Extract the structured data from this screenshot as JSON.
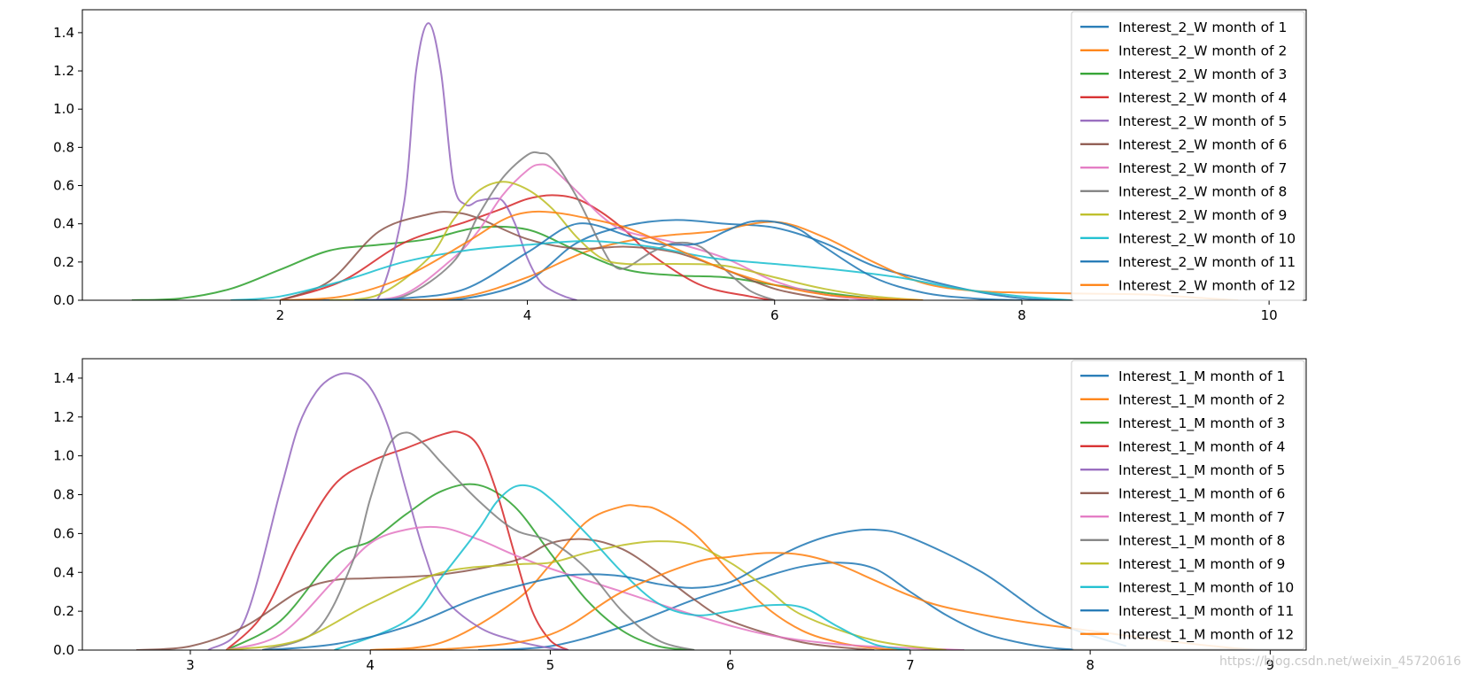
{
  "watermark": "https://blog.csdn.net/weixin_45720616",
  "palette": [
    "#1f77b4",
    "#ff7f0e",
    "#2ca02c",
    "#d62728",
    "#9467bd",
    "#8c564b",
    "#e377c2",
    "#7f7f7f",
    "#bcbd22",
    "#17becf",
    "#1f77b4",
    "#ff7f0e"
  ],
  "chart_data": [
    {
      "type": "line",
      "title": "",
      "xlabel": "",
      "ylabel": "",
      "xlim": [
        0.4,
        10.3
      ],
      "ylim": [
        0,
        1.52
      ],
      "xticks": [
        2,
        4,
        6,
        8,
        10
      ],
      "yticks": [
        0.0,
        0.2,
        0.4,
        0.6,
        0.8,
        1.0,
        1.2,
        1.4
      ],
      "grid": false,
      "legend": "top-right",
      "series": [
        {
          "name": "Interest_2_W month of 1",
          "x": [
            2.0,
            2.5,
            3.0,
            3.5,
            4.0,
            4.4,
            4.8,
            5.2,
            5.6,
            6.0,
            6.4,
            6.8,
            7.2,
            7.6,
            8.0,
            8.4
          ],
          "y": [
            0.0,
            0.0,
            0.0,
            0.01,
            0.1,
            0.3,
            0.39,
            0.42,
            0.4,
            0.38,
            0.3,
            0.18,
            0.11,
            0.05,
            0.01,
            0.0
          ]
        },
        {
          "name": "Interest_2_W month of 2",
          "x": [
            2.5,
            3.0,
            3.5,
            4.0,
            4.5,
            5.0,
            5.5,
            6.0,
            6.4,
            6.8,
            7.2,
            7.6,
            8.0,
            8.5,
            9.0,
            9.5,
            9.75
          ],
          "y": [
            0.0,
            0.0,
            0.02,
            0.12,
            0.26,
            0.33,
            0.36,
            0.41,
            0.33,
            0.2,
            0.09,
            0.05,
            0.04,
            0.035,
            0.03,
            0.01,
            0.0
          ]
        },
        {
          "name": "Interest_2_W month of 3",
          "x": [
            0.8,
            1.2,
            1.6,
            2.0,
            2.4,
            2.8,
            3.2,
            3.6,
            4.0,
            4.4,
            4.8,
            5.2,
            5.6,
            6.0,
            6.4,
            6.8,
            7.0
          ],
          "y": [
            0.0,
            0.01,
            0.06,
            0.16,
            0.26,
            0.29,
            0.32,
            0.38,
            0.37,
            0.26,
            0.16,
            0.13,
            0.12,
            0.08,
            0.04,
            0.01,
            0.0
          ]
        },
        {
          "name": "Interest_2_W month of 4",
          "x": [
            2.0,
            2.5,
            3.0,
            3.5,
            3.8,
            4.0,
            4.2,
            4.4,
            4.6,
            4.8,
            5.0,
            5.4,
            5.8,
            6.0
          ],
          "y": [
            0.0,
            0.1,
            0.3,
            0.41,
            0.48,
            0.53,
            0.55,
            0.53,
            0.46,
            0.36,
            0.24,
            0.08,
            0.02,
            0.0
          ]
        },
        {
          "name": "Interest_2_W month of 5",
          "x": [
            2.6,
            2.8,
            3.0,
            3.1,
            3.2,
            3.3,
            3.4,
            3.5,
            3.6,
            3.7,
            3.8,
            3.9,
            4.0,
            4.1,
            4.2,
            4.3,
            4.4
          ],
          "y": [
            0.0,
            0.02,
            0.5,
            1.2,
            1.45,
            1.2,
            0.62,
            0.5,
            0.52,
            0.53,
            0.52,
            0.4,
            0.22,
            0.1,
            0.05,
            0.02,
            0.0
          ]
        },
        {
          "name": "Interest_2_W month of 6",
          "x": [
            2.0,
            2.4,
            2.8,
            3.2,
            3.4,
            3.6,
            4.0,
            4.4,
            4.8,
            5.2,
            5.6,
            6.0,
            6.4,
            6.6
          ],
          "y": [
            0.0,
            0.1,
            0.36,
            0.45,
            0.46,
            0.43,
            0.32,
            0.27,
            0.28,
            0.25,
            0.16,
            0.06,
            0.01,
            0.0
          ]
        },
        {
          "name": "Interest_2_W month of 7",
          "x": [
            2.6,
            3.0,
            3.4,
            3.6,
            3.8,
            4.0,
            4.1,
            4.2,
            4.4,
            4.6,
            4.8,
            5.2,
            5.6,
            6.0,
            6.4,
            6.8
          ],
          "y": [
            0.0,
            0.03,
            0.22,
            0.36,
            0.55,
            0.68,
            0.71,
            0.69,
            0.57,
            0.44,
            0.36,
            0.3,
            0.22,
            0.1,
            0.03,
            0.0
          ]
        },
        {
          "name": "Interest_2_W month of 8",
          "x": [
            2.6,
            3.0,
            3.4,
            3.6,
            3.8,
            4.0,
            4.1,
            4.2,
            4.4,
            4.6,
            4.7,
            4.8,
            5.0,
            5.2,
            5.4,
            5.6,
            5.8,
            6.0
          ],
          "y": [
            0.0,
            0.02,
            0.2,
            0.44,
            0.64,
            0.76,
            0.77,
            0.74,
            0.54,
            0.28,
            0.18,
            0.17,
            0.25,
            0.3,
            0.28,
            0.16,
            0.05,
            0.0
          ]
        },
        {
          "name": "Interest_2_W month of 9",
          "x": [
            2.4,
            2.8,
            3.2,
            3.4,
            3.6,
            3.8,
            4.0,
            4.2,
            4.4,
            4.6,
            4.8,
            5.2,
            5.6,
            6.0,
            6.4,
            6.8,
            7.2
          ],
          "y": [
            0.0,
            0.03,
            0.22,
            0.42,
            0.57,
            0.62,
            0.58,
            0.48,
            0.33,
            0.22,
            0.19,
            0.19,
            0.18,
            0.12,
            0.06,
            0.02,
            0.0
          ]
        },
        {
          "name": "Interest_2_W month of 10",
          "x": [
            1.6,
            2.0,
            2.5,
            3.0,
            3.5,
            4.0,
            4.5,
            5.0,
            5.5,
            6.0,
            6.5,
            7.0,
            7.5,
            8.0,
            8.4
          ],
          "y": [
            0.0,
            0.02,
            0.1,
            0.2,
            0.26,
            0.29,
            0.31,
            0.28,
            0.22,
            0.19,
            0.16,
            0.12,
            0.06,
            0.02,
            0.0
          ]
        },
        {
          "name": "Interest_2_W month of 11",
          "x": [
            2.6,
            3.0,
            3.5,
            4.0,
            4.4,
            4.8,
            5.0,
            5.2,
            5.4,
            5.6,
            5.8,
            6.0,
            6.2,
            6.4,
            6.8,
            7.2,
            7.6,
            8.0
          ],
          "y": [
            0.0,
            0.01,
            0.06,
            0.25,
            0.4,
            0.34,
            0.3,
            0.29,
            0.3,
            0.36,
            0.41,
            0.41,
            0.37,
            0.28,
            0.12,
            0.04,
            0.01,
            0.0
          ]
        },
        {
          "name": "Interest_2_W month of 12",
          "x": [
            2.0,
            2.5,
            3.0,
            3.5,
            3.8,
            4.0,
            4.2,
            4.4,
            4.8,
            5.2,
            5.6,
            6.0,
            6.4,
            6.8,
            7.2
          ],
          "y": [
            0.0,
            0.02,
            0.12,
            0.3,
            0.42,
            0.46,
            0.46,
            0.44,
            0.38,
            0.27,
            0.16,
            0.08,
            0.03,
            0.01,
            0.0
          ]
        }
      ]
    },
    {
      "type": "line",
      "title": "",
      "xlabel": "",
      "ylabel": "",
      "xlim": [
        2.4,
        9.2
      ],
      "ylim": [
        0,
        1.5
      ],
      "xticks": [
        3,
        4,
        5,
        6,
        7,
        8,
        9
      ],
      "yticks": [
        0.0,
        0.2,
        0.4,
        0.6,
        0.8,
        1.0,
        1.2,
        1.4
      ],
      "grid": false,
      "legend": "top-right",
      "series": [
        {
          "name": "Interest_1_M month of 1",
          "x": [
            4.6,
            5.0,
            5.4,
            5.8,
            6.0,
            6.2,
            6.4,
            6.6,
            6.8,
            7.0,
            7.2,
            7.4,
            7.6,
            7.8,
            8.0
          ],
          "y": [
            0.0,
            0.02,
            0.12,
            0.26,
            0.32,
            0.38,
            0.43,
            0.45,
            0.42,
            0.3,
            0.18,
            0.09,
            0.04,
            0.01,
            0.0
          ]
        },
        {
          "name": "Interest_1_M month of 2",
          "x": [
            4.0,
            4.4,
            4.8,
            5.0,
            5.2,
            5.4,
            5.5,
            5.6,
            5.8,
            6.0,
            6.2,
            6.4,
            6.6,
            6.8,
            7.0
          ],
          "y": [
            0.0,
            0.04,
            0.25,
            0.44,
            0.66,
            0.74,
            0.74,
            0.72,
            0.6,
            0.4,
            0.22,
            0.1,
            0.04,
            0.01,
            0.0
          ]
        },
        {
          "name": "Interest_1_M month of 3",
          "x": [
            3.2,
            3.5,
            3.8,
            4.0,
            4.2,
            4.4,
            4.6,
            4.8,
            5.0,
            5.2,
            5.4,
            5.6,
            5.8
          ],
          "y": [
            0.0,
            0.15,
            0.48,
            0.56,
            0.7,
            0.82,
            0.85,
            0.74,
            0.5,
            0.26,
            0.1,
            0.02,
            0.0
          ]
        },
        {
          "name": "Interest_1_M month of 4",
          "x": [
            3.2,
            3.4,
            3.6,
            3.8,
            4.0,
            4.2,
            4.4,
            4.5,
            4.6,
            4.7,
            4.8,
            4.9,
            5.0,
            5.1
          ],
          "y": [
            0.0,
            0.18,
            0.55,
            0.85,
            0.97,
            1.04,
            1.11,
            1.12,
            1.05,
            0.82,
            0.5,
            0.2,
            0.05,
            0.0
          ]
        },
        {
          "name": "Interest_1_M month of 5",
          "x": [
            3.1,
            3.3,
            3.5,
            3.6,
            3.7,
            3.8,
            3.9,
            4.0,
            4.1,
            4.2,
            4.3,
            4.4,
            4.6,
            4.8,
            5.0,
            5.1
          ],
          "y": [
            0.0,
            0.15,
            0.82,
            1.15,
            1.33,
            1.41,
            1.42,
            1.35,
            1.15,
            0.82,
            0.5,
            0.28,
            0.12,
            0.05,
            0.01,
            0.0
          ]
        },
        {
          "name": "Interest_1_M month of 6",
          "x": [
            2.7,
            3.0,
            3.3,
            3.6,
            3.8,
            4.0,
            4.4,
            4.8,
            5.0,
            5.2,
            5.4,
            5.6,
            5.8,
            6.0,
            6.4,
            6.8
          ],
          "y": [
            0.0,
            0.02,
            0.12,
            0.3,
            0.36,
            0.37,
            0.39,
            0.46,
            0.55,
            0.57,
            0.52,
            0.4,
            0.26,
            0.15,
            0.04,
            0.0
          ]
        },
        {
          "name": "Interest_1_M month of 7",
          "x": [
            3.2,
            3.5,
            3.8,
            4.0,
            4.2,
            4.4,
            4.6,
            4.8,
            5.0,
            5.4,
            5.8,
            6.2,
            6.6,
            7.0,
            7.3
          ],
          "y": [
            0.0,
            0.08,
            0.36,
            0.55,
            0.62,
            0.63,
            0.57,
            0.49,
            0.42,
            0.3,
            0.18,
            0.08,
            0.03,
            0.01,
            0.0
          ]
        },
        {
          "name": "Interest_1_M month of 8",
          "x": [
            3.4,
            3.7,
            3.9,
            4.0,
            4.1,
            4.2,
            4.3,
            4.4,
            4.6,
            4.8,
            5.0,
            5.2,
            5.4,
            5.6,
            5.8
          ],
          "y": [
            0.0,
            0.1,
            0.45,
            0.78,
            1.05,
            1.12,
            1.06,
            0.96,
            0.77,
            0.62,
            0.56,
            0.42,
            0.2,
            0.05,
            0.0
          ]
        },
        {
          "name": "Interest_1_M month of 9",
          "x": [
            3.2,
            3.6,
            4.0,
            4.4,
            4.8,
            5.0,
            5.2,
            5.4,
            5.6,
            5.8,
            6.0,
            6.2,
            6.4,
            6.8,
            7.2
          ],
          "y": [
            0.0,
            0.05,
            0.24,
            0.4,
            0.44,
            0.45,
            0.5,
            0.54,
            0.56,
            0.54,
            0.45,
            0.32,
            0.18,
            0.05,
            0.0
          ]
        },
        {
          "name": "Interest_1_M month of 10",
          "x": [
            3.8,
            4.2,
            4.4,
            4.6,
            4.7,
            4.8,
            4.9,
            5.0,
            5.2,
            5.4,
            5.6,
            5.8,
            6.0,
            6.2,
            6.4,
            6.6,
            6.8,
            7.0
          ],
          "y": [
            0.0,
            0.15,
            0.38,
            0.62,
            0.76,
            0.84,
            0.84,
            0.78,
            0.6,
            0.4,
            0.24,
            0.18,
            0.2,
            0.23,
            0.22,
            0.12,
            0.03,
            0.0
          ]
        },
        {
          "name": "Interest_1_M month of 11",
          "x": [
            3.4,
            3.8,
            4.2,
            4.6,
            5.0,
            5.2,
            5.4,
            5.6,
            5.8,
            6.0,
            6.2,
            6.4,
            6.6,
            6.8,
            7.0,
            7.4,
            7.8,
            8.2
          ],
          "y": [
            0.0,
            0.03,
            0.12,
            0.27,
            0.37,
            0.39,
            0.38,
            0.34,
            0.32,
            0.35,
            0.45,
            0.54,
            0.6,
            0.62,
            0.58,
            0.4,
            0.15,
            0.02
          ]
        },
        {
          "name": "Interest_1_M month of 12",
          "x": [
            4.0,
            4.5,
            5.0,
            5.4,
            5.8,
            6.0,
            6.2,
            6.4,
            6.6,
            6.8,
            7.0,
            7.2,
            7.6,
            8.0,
            8.4,
            8.8,
            9.0
          ],
          "y": [
            0.0,
            0.01,
            0.08,
            0.3,
            0.45,
            0.48,
            0.5,
            0.49,
            0.44,
            0.36,
            0.28,
            0.22,
            0.15,
            0.1,
            0.05,
            0.01,
            0.0
          ]
        }
      ]
    }
  ]
}
